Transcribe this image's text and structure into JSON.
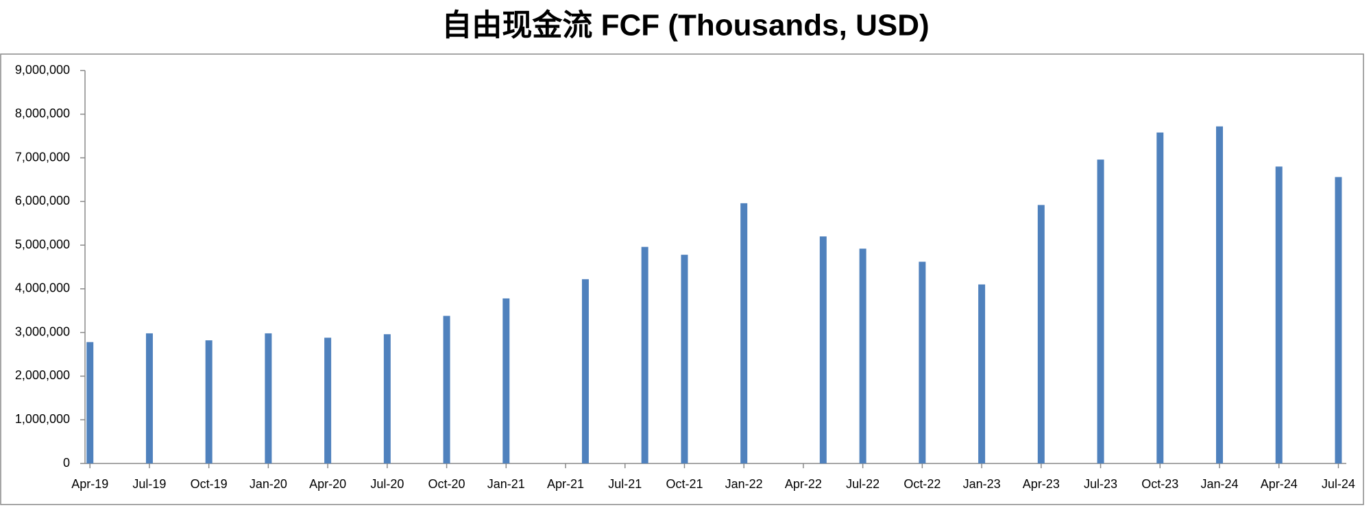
{
  "chart_data": {
    "type": "bar",
    "title": "自由现金流 FCF (Thousands, USD)",
    "x": [
      "2019-04",
      "2019-07",
      "2019-10",
      "2020-01",
      "2020-04",
      "2020-07",
      "2020-10",
      "2021-01",
      "2021-05",
      "2021-08",
      "2021-10",
      "2022-01",
      "2022-05",
      "2022-07",
      "2022-10",
      "2023-01",
      "2023-04",
      "2023-07",
      "2023-10",
      "2024-01",
      "2024-04",
      "2024-07"
    ],
    "values": [
      2780000,
      2980000,
      2820000,
      2980000,
      2880000,
      2960000,
      3380000,
      3780000,
      4220000,
      4960000,
      4780000,
      5960000,
      5200000,
      4920000,
      4620000,
      4100000,
      5920000,
      6960000,
      7580000,
      7720000,
      6800000,
      6560000
    ],
    "color": "#4f81bd",
    "xlim": [
      "2019-04",
      "2024-07"
    ],
    "xticks": [
      {
        "value": "2019-04",
        "label": "Apr-19"
      },
      {
        "value": "2019-07",
        "label": "Jul-19"
      },
      {
        "value": "2019-10",
        "label": "Oct-19"
      },
      {
        "value": "2020-01",
        "label": "Jan-20"
      },
      {
        "value": "2020-04",
        "label": "Apr-20"
      },
      {
        "value": "2020-07",
        "label": "Jul-20"
      },
      {
        "value": "2020-10",
        "label": "Oct-20"
      },
      {
        "value": "2021-01",
        "label": "Jan-21"
      },
      {
        "value": "2021-04",
        "label": "Apr-21"
      },
      {
        "value": "2021-07",
        "label": "Jul-21"
      },
      {
        "value": "2021-10",
        "label": "Oct-21"
      },
      {
        "value": "2022-01",
        "label": "Jan-22"
      },
      {
        "value": "2022-04",
        "label": "Apr-22"
      },
      {
        "value": "2022-07",
        "label": "Jul-22"
      },
      {
        "value": "2022-10",
        "label": "Oct-22"
      },
      {
        "value": "2023-01",
        "label": "Jan-23"
      },
      {
        "value": "2023-04",
        "label": "Apr-23"
      },
      {
        "value": "2023-07",
        "label": "Jul-23"
      },
      {
        "value": "2023-10",
        "label": "Oct-23"
      },
      {
        "value": "2024-01",
        "label": "Jan-24"
      },
      {
        "value": "2024-04",
        "label": "Apr-24"
      },
      {
        "value": "2024-07",
        "label": "Jul-24"
      }
    ],
    "ylim": [
      0,
      9000000
    ],
    "yticks": [
      0,
      {
        "value": 1000000,
        "label": "1,000,000"
      },
      {
        "value": 2000000,
        "label": "2,000,000"
      },
      {
        "value": 3000000,
        "label": "3,000,000"
      },
      {
        "value": 4000000,
        "label": "4,000,000"
      },
      {
        "value": 5000000,
        "label": "5,000,000"
      },
      {
        "value": 6000000,
        "label": "6,000,000"
      },
      {
        "value": 7000000,
        "label": "7,000,000"
      },
      {
        "value": 8000000,
        "label": "8,000,000"
      },
      {
        "value": 9000000,
        "label": "9,000,000"
      }
    ]
  }
}
